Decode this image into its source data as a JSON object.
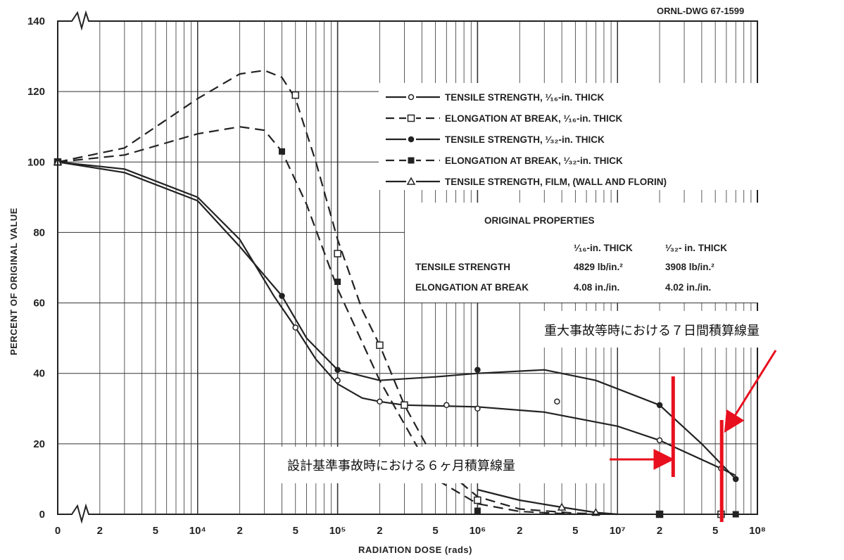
{
  "chart_data": {
    "type": "line",
    "drawing_id": "ORNL-DWG 67-1599",
    "xlabel": "RADIATION DOSE (rads)",
    "ylabel": "PERCENT OF ORIGINAL VALUE",
    "xscale": "log",
    "xlim": [
      1000,
      100000000
    ],
    "ylim": [
      0,
      140
    ],
    "grid": true,
    "x_tick_labels": [
      "0",
      "2",
      "5",
      "10⁴",
      "2",
      "5",
      "10⁵",
      "2",
      "5",
      "10⁶",
      "2",
      "5",
      "10⁷",
      "2",
      "5",
      "10⁸"
    ],
    "x_tick_values": [
      1000,
      2000,
      5000,
      10000,
      20000,
      50000,
      100000,
      200000,
      500000,
      1000000,
      2000000,
      5000000,
      10000000,
      20000000,
      50000000,
      100000000
    ],
    "y_tick_labels": [
      "0",
      "20",
      "40",
      "60",
      "80",
      "100",
      "120",
      "140"
    ],
    "y_tick_values": [
      0,
      20,
      40,
      60,
      80,
      100,
      120,
      140
    ],
    "series": [
      {
        "name": "TENSILE STRENGTH, ¹⁄₁₆-in. THICK",
        "style": "solid",
        "marker": "open-circle",
        "color": "#222222",
        "points": [
          [
            1000,
            100
          ],
          [
            50000,
            53
          ],
          [
            100000,
            38
          ],
          [
            200000,
            32
          ],
          [
            300000,
            31
          ],
          [
            600000,
            31
          ],
          [
            1000000,
            30
          ],
          [
            3700000,
            32
          ],
          [
            20000000,
            21
          ],
          [
            55000000,
            13
          ]
        ],
        "curve": [
          [
            1000,
            100
          ],
          [
            3000,
            98
          ],
          [
            10000,
            90
          ],
          [
            20000,
            78
          ],
          [
            35000,
            62
          ],
          [
            50000,
            53
          ],
          [
            70000,
            44
          ],
          [
            100000,
            37
          ],
          [
            150000,
            33
          ],
          [
            200000,
            32
          ],
          [
            300000,
            31
          ],
          [
            1000000,
            30.5
          ],
          [
            3000000,
            29
          ],
          [
            10000000,
            25
          ],
          [
            20000000,
            21
          ],
          [
            55000000,
            13
          ],
          [
            70000000,
            11
          ]
        ]
      },
      {
        "name": "ELONGATION AT BREAK, ¹⁄₁₆-in. THICK",
        "style": "dashed",
        "marker": "open-square",
        "color": "#222222",
        "points": [
          [
            1000,
            100
          ],
          [
            50000,
            119
          ],
          [
            100000,
            74
          ],
          [
            200000,
            48
          ],
          [
            300000,
            31
          ],
          [
            1000000,
            4
          ],
          [
            20000000,
            0
          ],
          [
            55000000,
            0
          ]
        ],
        "curve": [
          [
            1000,
            100
          ],
          [
            3000,
            104
          ],
          [
            10000,
            118
          ],
          [
            20000,
            125
          ],
          [
            30000,
            126
          ],
          [
            40000,
            124
          ],
          [
            50000,
            118
          ],
          [
            70000,
            100
          ],
          [
            100000,
            78
          ],
          [
            150000,
            58
          ],
          [
            200000,
            48
          ],
          [
            300000,
            31
          ],
          [
            500000,
            15
          ],
          [
            1000000,
            5
          ],
          [
            2000000,
            1.5
          ],
          [
            5000000,
            0.3
          ],
          [
            10000000,
            0
          ]
        ]
      },
      {
        "name": "TENSILE STRENGTH, ¹⁄₃₂-in. THICK",
        "style": "solid",
        "marker": "filled-circle",
        "color": "#222222",
        "points": [
          [
            1000,
            100
          ],
          [
            40000,
            62
          ],
          [
            100000,
            41
          ],
          [
            1000000,
            41
          ],
          [
            20000000,
            31
          ],
          [
            70000000,
            10
          ]
        ],
        "curve": [
          [
            1000,
            100
          ],
          [
            3000,
            97
          ],
          [
            10000,
            89
          ],
          [
            20000,
            76
          ],
          [
            40000,
            62
          ],
          [
            60000,
            50
          ],
          [
            100000,
            41
          ],
          [
            200000,
            38
          ],
          [
            500000,
            39
          ],
          [
            1000000,
            40
          ],
          [
            3000000,
            41
          ],
          [
            7000000,
            38
          ],
          [
            20000000,
            31
          ],
          [
            40000000,
            20
          ],
          [
            70000000,
            10
          ]
        ]
      },
      {
        "name": "ELONGATION AT BREAK, ¹⁄₃₂-in. THICK",
        "style": "dashed",
        "marker": "filled-square",
        "color": "#222222",
        "points": [
          [
            1000,
            100
          ],
          [
            40000,
            103
          ],
          [
            100000,
            66
          ],
          [
            1000000,
            1
          ],
          [
            20000000,
            0
          ],
          [
            70000000,
            0
          ]
        ],
        "curve": [
          [
            1000,
            100
          ],
          [
            3000,
            102
          ],
          [
            10000,
            108
          ],
          [
            20000,
            110
          ],
          [
            30000,
            109
          ],
          [
            40000,
            103
          ],
          [
            60000,
            88
          ],
          [
            100000,
            64
          ],
          [
            200000,
            38
          ],
          [
            500000,
            10
          ],
          [
            1000000,
            3
          ],
          [
            2000000,
            0.8
          ],
          [
            5000000,
            0
          ]
        ]
      },
      {
        "name": "TENSILE STRENGTH, FILM, (WALL AND FLORIN)",
        "style": "solid",
        "marker": "open-triangle",
        "color": "#222222",
        "points": [
          [
            1000,
            100
          ],
          [
            4000000,
            2
          ],
          [
            7000000,
            0.5
          ]
        ],
        "curve": [
          [
            1000000,
            7
          ],
          [
            2000000,
            4
          ],
          [
            4000000,
            2
          ],
          [
            7000000,
            0.5
          ],
          [
            10000000,
            0
          ]
        ]
      }
    ],
    "original_properties": {
      "title": "ORIGINAL PROPERTIES",
      "col_headers": [
        "¹⁄₁₆-in. THICK",
        "¹⁄₃₂- in. THICK"
      ],
      "rows": [
        {
          "label": "TENSILE STRENGTH",
          "values": [
            "4829 lb/in.²",
            "3908 lb/in.²"
          ]
        },
        {
          "label": "ELONGATION AT BREAK",
          "values": [
            "4.08 in./in.",
            "4.02 in./in."
          ]
        }
      ]
    },
    "annotations": [
      {
        "text": "重大事故等時における７日間積算線量",
        "dose": 70000000,
        "color": "#e8101e"
      },
      {
        "text": "設計基準事故時における６ヶ月積算線量",
        "dose": 25000000,
        "color": "#e8101e"
      }
    ]
  }
}
